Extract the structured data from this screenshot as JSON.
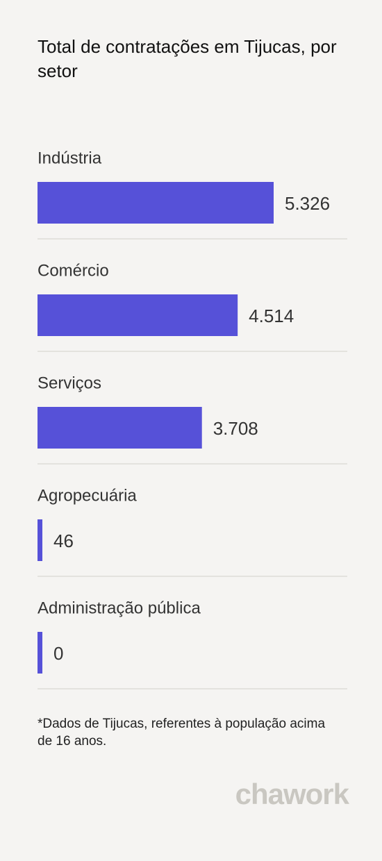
{
  "chart_data": {
    "type": "bar",
    "title": "Total de contratações em Tijucas, por setor",
    "categories": [
      "Indústria",
      "Comércio",
      "Serviços",
      "Agropecuária",
      "Administração pública"
    ],
    "values": [
      5326,
      4514,
      3708,
      46,
      0
    ],
    "value_labels": [
      "5.326",
      "4.514",
      "3.708",
      "46",
      "0"
    ],
    "color": "#5651d8",
    "footnote": "*Dados de Tijucas, referentes à população acima de 16 anos.",
    "brand": "chawork"
  }
}
